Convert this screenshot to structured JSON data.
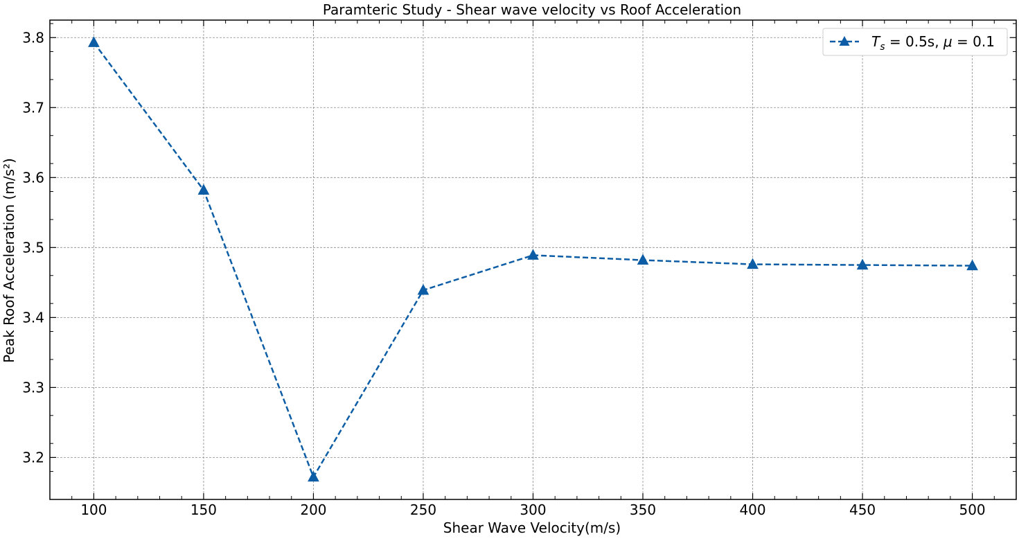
{
  "chart_data": {
    "type": "line",
    "title": "Paramteric Study - Shear wave velocity vs Roof Acceleration",
    "xlabel": "Shear Wave Velocity(m/s)",
    "ylabel": "Peak Roof Acceleration (m/s²)",
    "xlim": [
      80,
      520
    ],
    "ylim": [
      3.14,
      3.825
    ],
    "x_ticks": [
      100,
      150,
      200,
      250,
      300,
      350,
      400,
      450,
      500
    ],
    "x_tick_labels": [
      "100",
      "150",
      "200",
      "250",
      "300",
      "350",
      "400",
      "450",
      "500"
    ],
    "y_ticks": [
      3.2,
      3.3,
      3.4,
      3.5,
      3.6,
      3.7,
      3.8
    ],
    "y_tick_labels": [
      "3.2",
      "3.3",
      "3.4",
      "3.5",
      "3.6",
      "3.7",
      "3.8"
    ],
    "grid": true,
    "legend_position": "top-right",
    "series": [
      {
        "name": "T_s = 0.5s, μ = 0.1",
        "legend_parts": {
          "symbol": "T",
          "subscript": "s",
          "eq1": " = 0.5s, ",
          "mu": "μ",
          "eq2": " = 0.1"
        },
        "color": "#0C5DA5",
        "line_style": "dashed",
        "marker": "triangle",
        "x": [
          100,
          150,
          200,
          250,
          300,
          350,
          400,
          450,
          500
        ],
        "y": [
          3.793,
          3.582,
          3.172,
          3.439,
          3.489,
          3.482,
          3.476,
          3.475,
          3.474
        ]
      }
    ]
  }
}
